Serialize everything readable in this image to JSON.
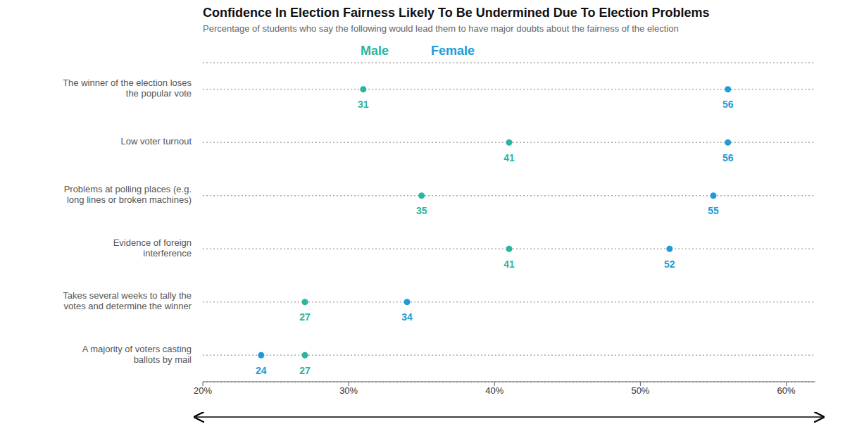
{
  "chart_data": {
    "type": "scatter",
    "orientation": "horizontal",
    "title": "Confidence In Election Fairness Likely To Be Undermined Due To Election Problems",
    "subtitle": "Percentage of students who say the following would lead them to have major doubts about the fairness of the election",
    "categories": [
      "The winner of the election loses\nthe popular vote",
      "Low voter turnout",
      "Problems at polling places (e.g.\nlong lines or broken machines)",
      "Evidence of foreign\ninterference",
      "Takes several weeks to tally the\nvotes and determine the winner",
      "A majority of voters casting\nballots by mail"
    ],
    "series": [
      {
        "name": "Male",
        "color": "#2ab5a0",
        "values": [
          31,
          41,
          35,
          41,
          27,
          27
        ]
      },
      {
        "name": "Female",
        "color": "#1e9cd8",
        "values": [
          56,
          56,
          55,
          52,
          34,
          24
        ]
      }
    ],
    "xlim": [
      20,
      62
    ],
    "xticks": [
      {
        "value": 20,
        "label": "20%"
      },
      {
        "value": 30,
        "label": "30%"
      },
      {
        "value": 40,
        "label": "40%"
      },
      {
        "value": 50,
        "label": "50%"
      },
      {
        "value": 60,
        "label": "60%"
      }
    ],
    "grid": true,
    "legend": "top",
    "data_labels": true
  }
}
